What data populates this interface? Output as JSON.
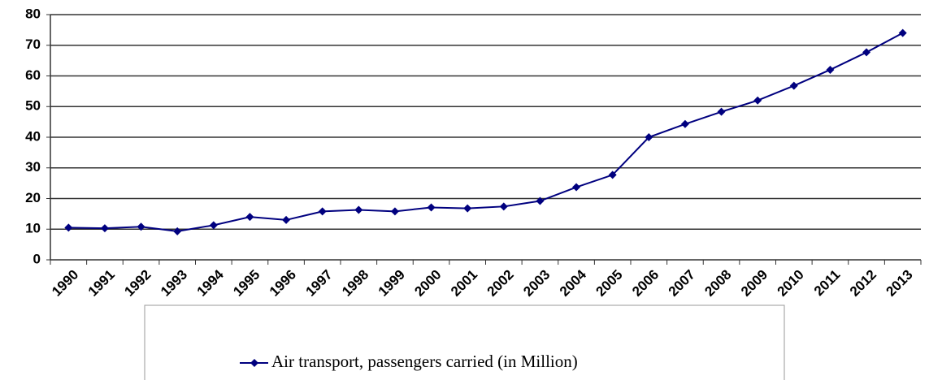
{
  "chart_data": {
    "type": "line",
    "categories": [
      "1990",
      "1991",
      "1992",
      "1993",
      "1994",
      "1995",
      "1996",
      "1997",
      "1998",
      "1999",
      "2000",
      "2001",
      "2002",
      "2003",
      "2004",
      "2005",
      "2006",
      "2007",
      "2008",
      "2009",
      "2010",
      "2011",
      "2012",
      "2013"
    ],
    "series": [
      {
        "name": "Air transport, passengers carried (in Million)",
        "color": "#00007f",
        "values": [
          10.5,
          10.3,
          10.8,
          9.3,
          11.3,
          14,
          13,
          15.8,
          16.3,
          15.8,
          17.1,
          16.8,
          17.4,
          19.2,
          23.7,
          27.7,
          40,
          44.3,
          48.3,
          52,
          56.8,
          62,
          67.7,
          74
        ]
      }
    ],
    "ylim": [
      0,
      80
    ],
    "yticks": [
      0,
      10,
      20,
      30,
      40,
      50,
      60,
      70,
      80
    ],
    "grid": true,
    "legend": "bottom"
  }
}
